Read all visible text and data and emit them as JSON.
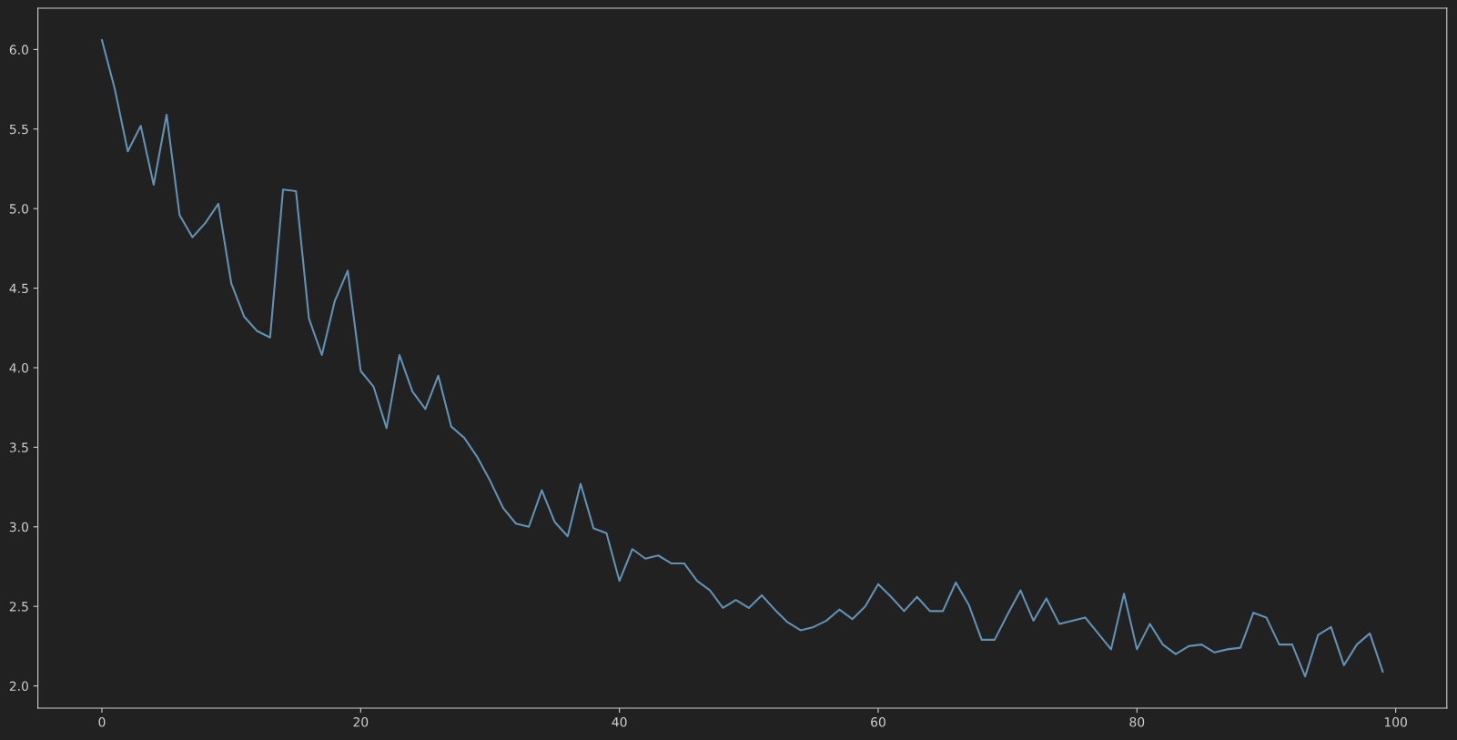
{
  "chart_data": {
    "type": "line",
    "x": [
      0,
      1,
      2,
      3,
      4,
      5,
      6,
      7,
      8,
      9,
      10,
      11,
      12,
      13,
      14,
      15,
      16,
      17,
      18,
      19,
      20,
      21,
      22,
      23,
      24,
      25,
      26,
      27,
      28,
      29,
      30,
      31,
      32,
      33,
      34,
      35,
      36,
      37,
      38,
      39,
      40,
      41,
      42,
      43,
      44,
      45,
      46,
      47,
      48,
      49,
      50,
      51,
      52,
      53,
      54,
      55,
      56,
      57,
      58,
      59,
      60,
      61,
      62,
      63,
      64,
      65,
      66,
      67,
      68,
      69,
      70,
      71,
      72,
      73,
      74,
      75,
      76,
      77,
      78,
      79,
      80,
      81,
      82,
      83,
      84,
      85,
      86,
      87,
      88,
      89,
      90,
      91,
      92,
      93,
      94,
      95,
      96,
      97,
      98,
      99
    ],
    "series": [
      {
        "color": "#6391b4",
        "values": [
          6.06,
          5.75,
          5.36,
          5.52,
          5.15,
          5.59,
          4.96,
          4.82,
          4.91,
          5.03,
          4.53,
          4.32,
          4.23,
          4.19,
          5.12,
          5.11,
          4.31,
          4.08,
          4.42,
          4.61,
          3.98,
          3.88,
          3.62,
          4.08,
          3.85,
          3.74,
          3.95,
          3.63,
          3.56,
          3.44,
          3.29,
          3.12,
          3.02,
          3.0,
          3.23,
          3.03,
          2.94,
          3.27,
          2.99,
          2.96,
          2.66,
          2.86,
          2.8,
          2.82,
          2.77,
          2.77,
          2.66,
          2.6,
          2.49,
          2.54,
          2.49,
          2.57,
          2.48,
          2.4,
          2.35,
          2.37,
          2.41,
          2.48,
          2.42,
          2.5,
          2.64,
          2.56,
          2.47,
          2.56,
          2.47,
          2.47,
          2.65,
          2.51,
          2.29,
          2.29,
          2.45,
          2.6,
          2.41,
          2.55,
          2.39,
          2.41,
          2.43,
          2.33,
          2.23,
          2.58,
          2.23,
          2.39,
          2.26,
          2.2,
          2.25,
          2.26,
          2.21,
          2.23,
          2.24,
          2.46,
          2.43,
          2.26,
          2.26,
          2.06,
          2.32,
          2.37,
          2.13,
          2.26,
          2.33,
          2.09
        ]
      }
    ],
    "xlim": [
      -4.95,
      103.95
    ],
    "ylim": [
      1.86,
      6.26
    ],
    "xticks": [
      0,
      20,
      40,
      60,
      80,
      100
    ],
    "yticks": [
      {
        "value": 2,
        "label": "2.0"
      },
      {
        "value": 2.5,
        "label": "2.5"
      },
      {
        "value": 3,
        "label": "3.0"
      },
      {
        "value": 3.5,
        "label": "3.5"
      },
      {
        "value": 4,
        "label": "4.0"
      },
      {
        "value": 4.5,
        "label": "4.5"
      },
      {
        "value": 5,
        "label": "5.0"
      },
      {
        "value": 5.5,
        "label": "5.5"
      },
      {
        "value": 6,
        "label": "6.0"
      }
    ],
    "grid": false,
    "legend": false,
    "marker": "none",
    "line_style": "solid"
  }
}
